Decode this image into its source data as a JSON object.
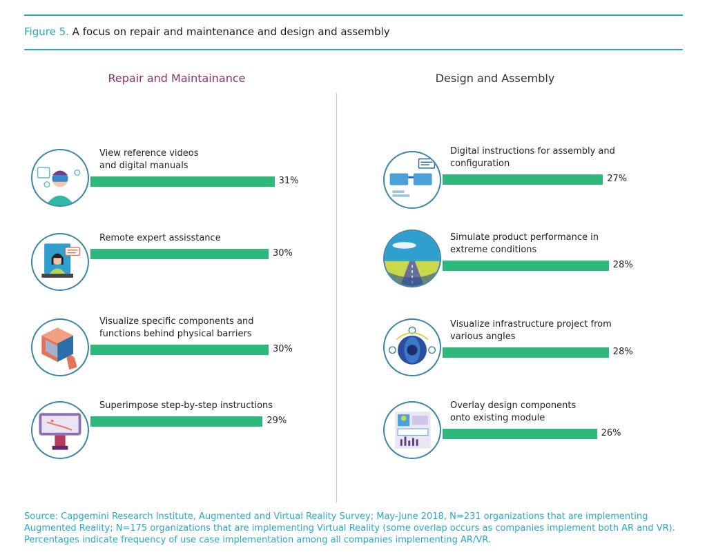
{
  "figure": {
    "number": "Figure 5.",
    "title": "A focus on repair and maintenance and design and assembly"
  },
  "chart_data": [
    {
      "type": "bar",
      "title": "Repair and Maintainance",
      "categories": [
        "View reference videos and digital manuals",
        "Remote expert assisstance",
        "Visualize specific components and functions behind physical barriers",
        "Superimpose step-by-step instructions"
      ],
      "label_lines": [
        [
          "View reference videos",
          "and digital manuals"
        ],
        [
          "Remote expert assisstance"
        ],
        [
          "Visualize specific components and",
          "functions behind physical barriers"
        ],
        [
          "Superimpose step-by-step instructions"
        ]
      ],
      "values": [
        31,
        30,
        30,
        29
      ],
      "value_labels": [
        "31%",
        "30%",
        "30%",
        "29%"
      ],
      "icons": [
        "vr-headset-icon",
        "video-call-icon",
        "cube-touch-icon",
        "tablet-instructions-icon"
      ],
      "orientation": "horizontal"
    },
    {
      "type": "bar",
      "title": "Design and Assembly",
      "categories": [
        "Digital instructions for assembly and configuration",
        "Simulate product performance in extreme conditions",
        "Visualize infrastructure project from various angles",
        "Overlay design components onto existing module"
      ],
      "label_lines": [
        [
          "Digital instructions for assembly and",
          "configuration"
        ],
        [
          "Simulate product performance in",
          "extreme conditions"
        ],
        [
          "Visualize infrastructure project from",
          "various angles"
        ],
        [
          "Overlay design components",
          "onto existing module"
        ]
      ],
      "values": [
        27,
        28,
        28,
        26
      ],
      "value_labels": [
        "27%",
        "28%",
        "28%",
        "26%"
      ],
      "icons": [
        "smart-glasses-icon",
        "road-simulation-icon",
        "360-view-icon",
        "design-overlay-icon"
      ],
      "orientation": "horizontal"
    }
  ],
  "colors": {
    "bar": "#2fb87c",
    "accent": "#27a9c6",
    "left_heading": "#8a2f6b"
  },
  "source": "Source: Capgemini Research Institute, Augmented and Virtual Reality Survey; May-June 2018, N=231 organizations that are implementing Augmented Reality; N=175 organizations that are implementing Virtual Reality (some overlap occurs as companies implement both AR and VR). Percentages indicate frequency of use case implementation among all companies implementing AR/VR."
}
